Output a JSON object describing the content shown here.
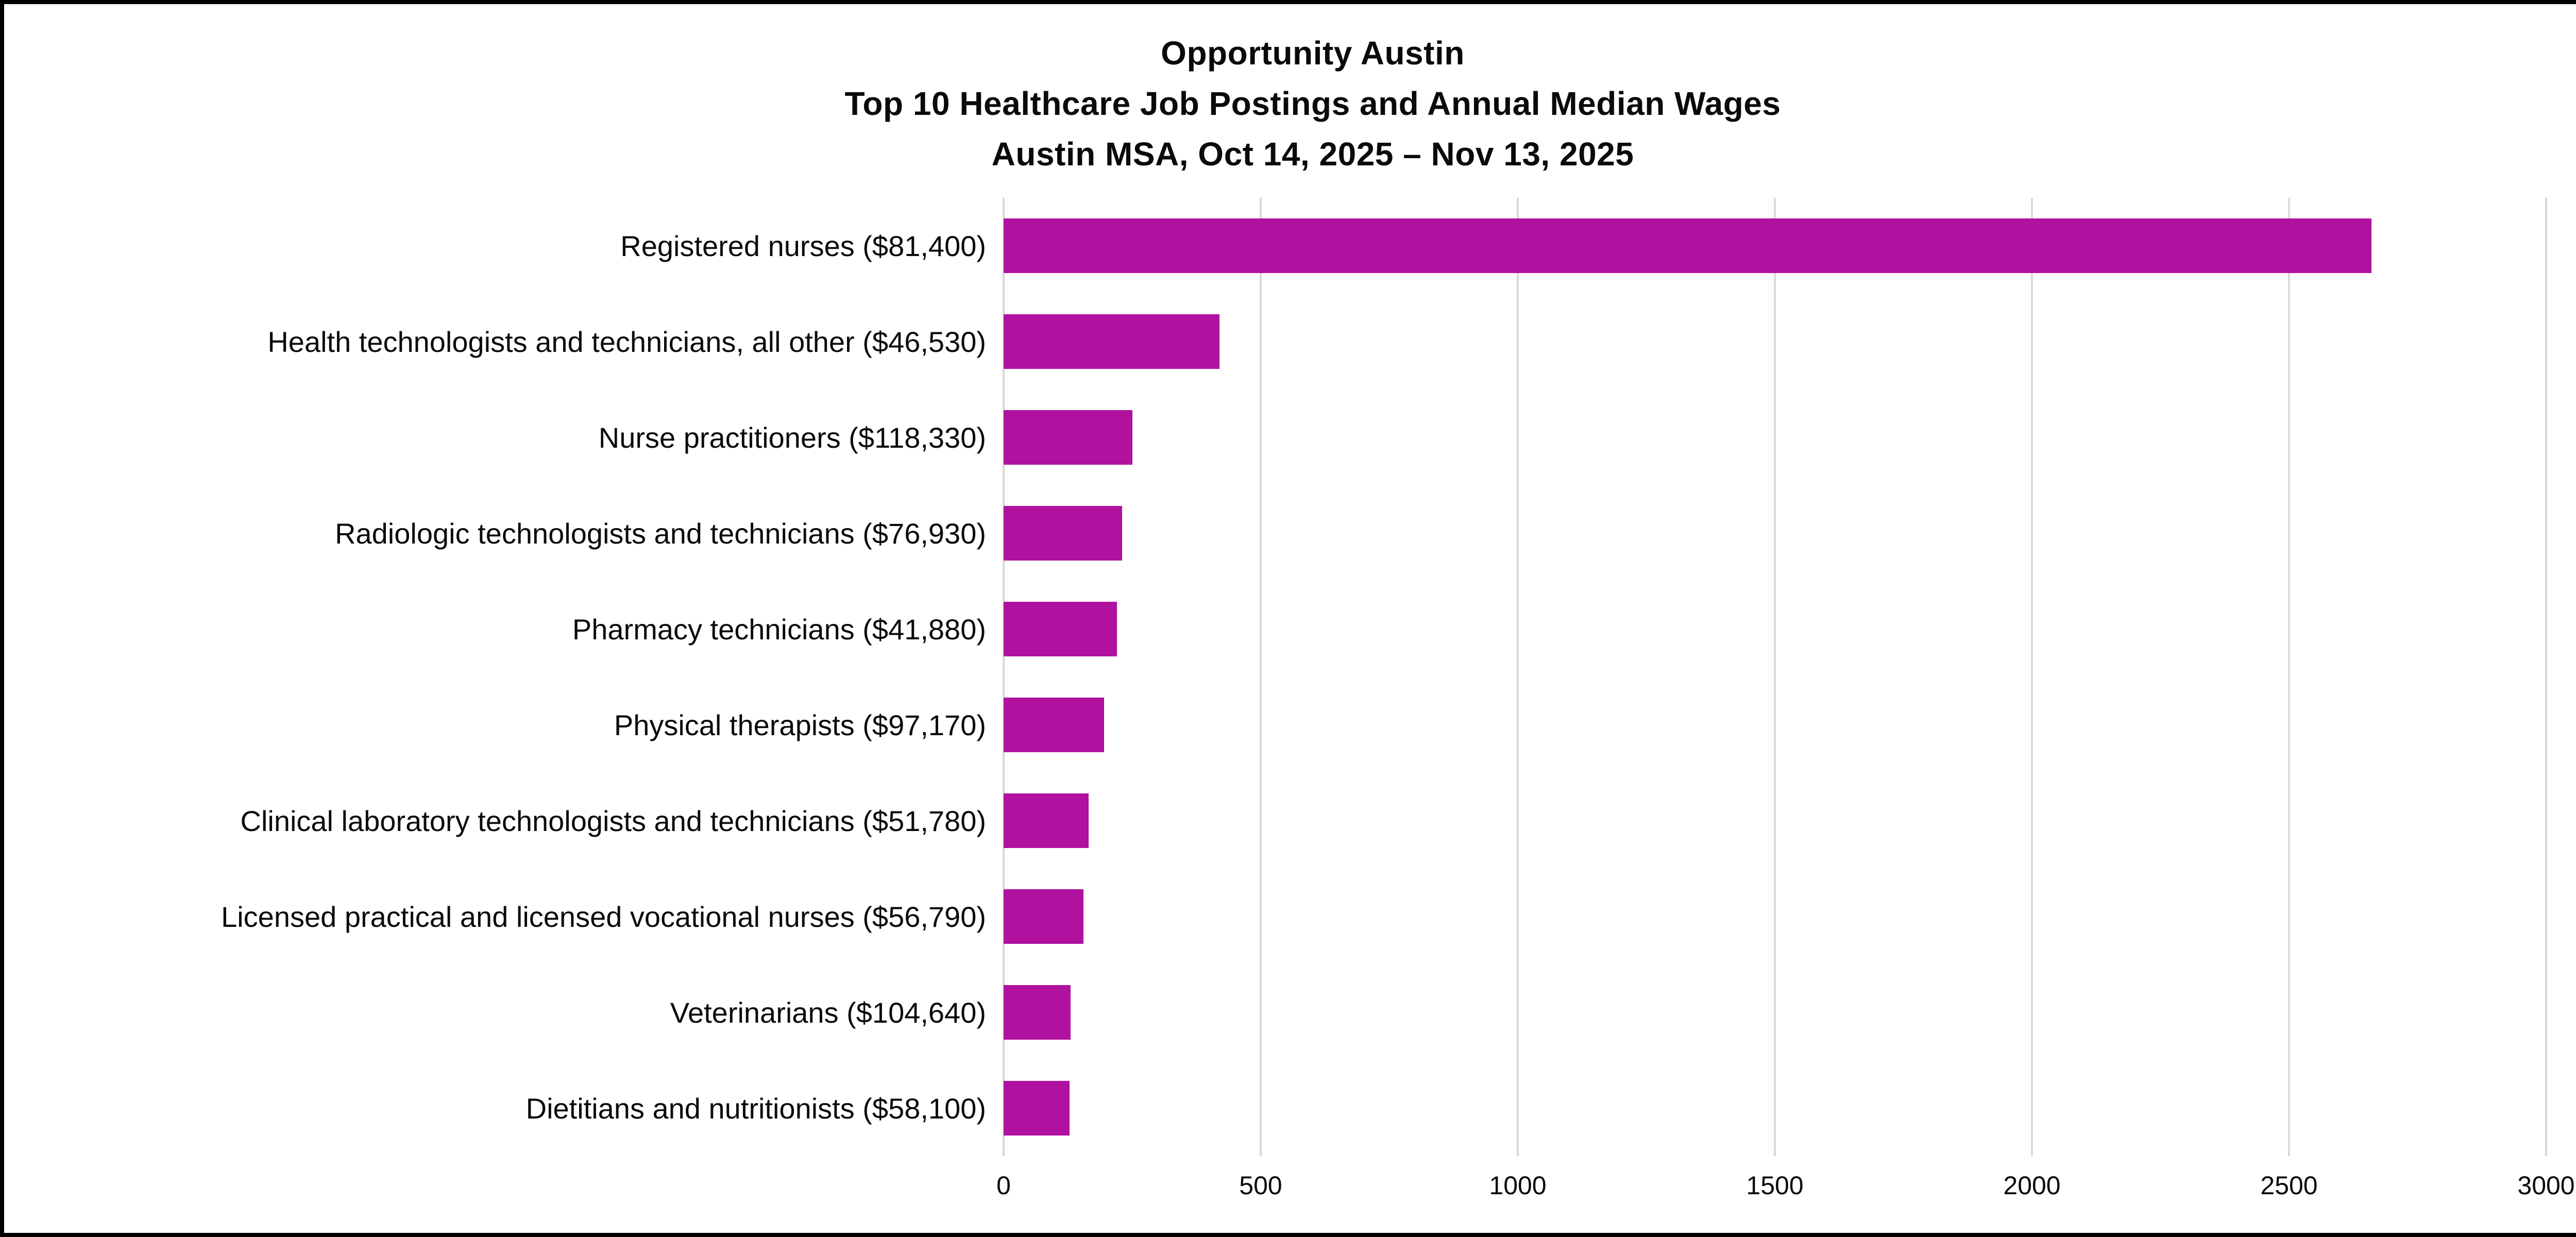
{
  "title": {
    "line1": "Opportunity Austin",
    "line2": "Top 10 Healthcare Job Postings and Annual Median Wages",
    "line3": "Austin MSA, Oct 14, 2025 – Nov 13, 2025"
  },
  "chart_data": {
    "type": "bar",
    "orientation": "horizontal",
    "title": "Opportunity Austin",
    "subtitle": "Top 10 Healthcare Job Postings and Annual Median Wages",
    "subtitle2": "Austin MSA, Oct 14, 2025 – Nov 13, 2025",
    "categories": [
      "Registered nurses ($81,400)",
      "Health technologists and technicians, all other ($46,530)",
      "Nurse practitioners ($118,330)",
      "Radiologic technologists and technicians ($76,930)",
      "Pharmacy technicians ($41,880)",
      "Physical therapists ($97,170)",
      "Clinical laboratory technologists and technicians ($51,780)",
      "Licensed practical and licensed vocational nurses ($56,790)",
      "Veterinarians ($104,640)",
      "Dietitians and nutritionists ($58,100)"
    ],
    "values": [
      2660,
      420,
      250,
      230,
      220,
      195,
      165,
      155,
      130,
      128
    ],
    "xlabel": "",
    "ylabel": "",
    "xlim": [
      0,
      3000
    ],
    "x_ticks": [
      0,
      500,
      1000,
      1500,
      2000,
      2500,
      3000
    ],
    "grid": true,
    "legend": "none",
    "bar_color": "#b0119e",
    "gridline_color": "#d9d9d9",
    "background_color": "#ffffff",
    "border_color": "#000000"
  }
}
